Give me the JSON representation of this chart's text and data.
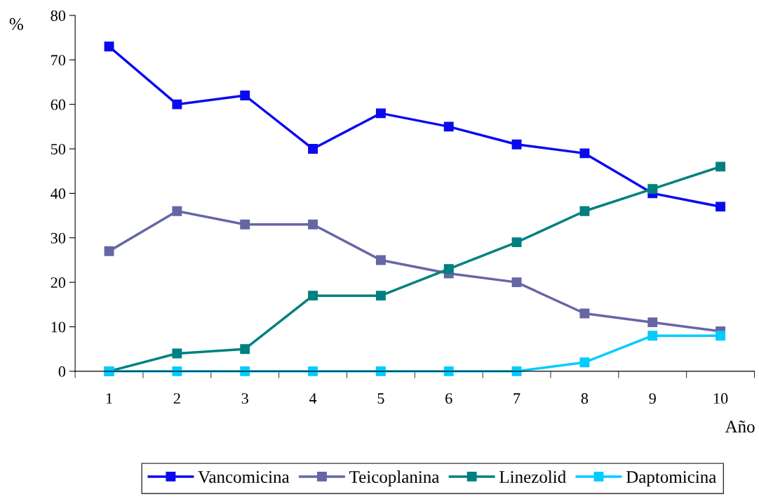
{
  "chart_data": {
    "type": "line",
    "ylabel": "%",
    "xlabel": "Año",
    "categories": [
      "1",
      "2",
      "3",
      "4",
      "5",
      "6",
      "7",
      "8",
      "9",
      "10"
    ],
    "series": [
      {
        "name": "Vancomicina",
        "color": "#0a0af0",
        "values": [
          73,
          60,
          62,
          50,
          58,
          55,
          51,
          49,
          40,
          37
        ]
      },
      {
        "name": "Teicoplanina",
        "color": "#6666a6",
        "values": [
          27,
          36,
          33,
          33,
          25,
          22,
          20,
          13,
          11,
          9
        ]
      },
      {
        "name": "Linezolid",
        "color": "#008080",
        "values": [
          0,
          4,
          5,
          17,
          17,
          23,
          29,
          36,
          41,
          46
        ]
      },
      {
        "name": "Daptomicina",
        "color": "#00ccff",
        "values": [
          0,
          0,
          0,
          0,
          0,
          0,
          0,
          2,
          8,
          8
        ]
      }
    ],
    "ylim": [
      0,
      80
    ],
    "yticks": [
      0,
      10,
      20,
      30,
      40,
      50,
      60,
      70,
      80
    ],
    "grid": false,
    "legend": "bottom",
    "marker": "square",
    "line_style": "solid"
  }
}
